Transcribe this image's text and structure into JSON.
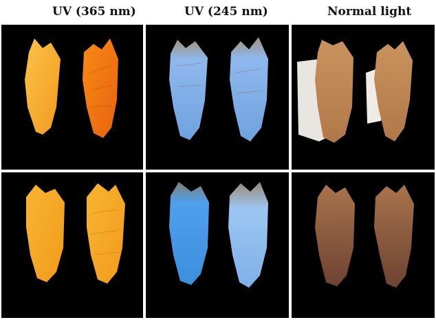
{
  "headers": {
    "uv365": "UV (365 nm)",
    "uv245": "UV (245 nm)",
    "normal": "Normal light"
  },
  "colors": {
    "background": "#000000",
    "uv365_light": "#f7b531",
    "uv365_deep": "#f57a12",
    "uv245_body": "#7fb3ec",
    "uv245_bright": "#5fa8f0",
    "normal_top": "#c9935f",
    "normal_bottom": "#7e4f38"
  }
}
